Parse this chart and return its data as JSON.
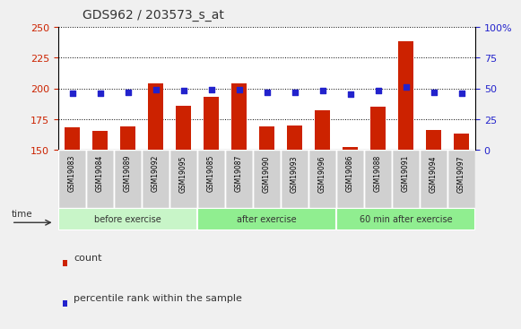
{
  "title": "GDS962 / 203573_s_at",
  "samples": [
    "GSM19083",
    "GSM19084",
    "GSM19089",
    "GSM19092",
    "GSM19095",
    "GSM19085",
    "GSM19087",
    "GSM19090",
    "GSM19093",
    "GSM19096",
    "GSM19086",
    "GSM19088",
    "GSM19091",
    "GSM19094",
    "GSM19097"
  ],
  "counts": [
    168,
    165,
    169,
    204,
    186,
    193,
    204,
    169,
    170,
    182,
    152,
    185,
    238,
    166,
    163
  ],
  "percentile_ranks": [
    46,
    46,
    47,
    49,
    48,
    49,
    49,
    47,
    47,
    48,
    45,
    48,
    51,
    47,
    46
  ],
  "group_starts": [
    0,
    5,
    10
  ],
  "group_ends": [
    5,
    10,
    15
  ],
  "group_labels": [
    "before exercise",
    "after exercise",
    "60 min after exercise"
  ],
  "group_colors": [
    "#c8f5c8",
    "#90ee90",
    "#90ee90"
  ],
  "ylim": [
    150,
    250
  ],
  "yticks": [
    150,
    175,
    200,
    225,
    250
  ],
  "right_yticks": [
    0,
    25,
    50,
    75,
    100
  ],
  "right_ylim": [
    0,
    100
  ],
  "bar_color": "#cc2200",
  "scatter_color": "#2222cc",
  "bg_color": "#f0f0f0",
  "plot_bg": "#ffffff",
  "left_tick_color": "#cc2200",
  "right_tick_color": "#2222cc",
  "tick_label_bg": "#d0d0d0"
}
